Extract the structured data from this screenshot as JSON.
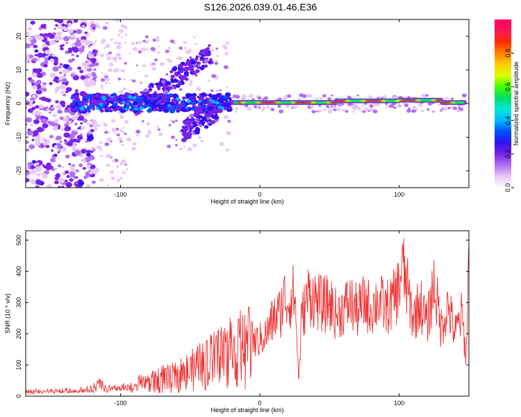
{
  "title": "S126.2026.039.01.46.E36",
  "chart_data": [
    {
      "type": "heatmap",
      "xlabel": "Height of straight line (km)",
      "ylabel": "Frequency (Hz)",
      "xlim": [
        -168,
        150
      ],
      "ylim": [
        -25,
        25
      ],
      "xticks": [
        -100,
        0,
        100
      ],
      "yticks": [
        -20,
        -10,
        0,
        10,
        20
      ],
      "colorbar": {
        "label": "Normalized spectral amplitude",
        "range": [
          0,
          1
        ],
        "ticks": [
          "0.0",
          "0.2",
          "0.4",
          "0.6",
          "0.8"
        ],
        "tick_values": [
          0,
          0.2,
          0.4,
          0.6,
          0.8
        ],
        "colors": [
          "#ffffff",
          "#e8c8f8",
          "#b070f0",
          "#7a22e8",
          "#3010f0",
          "#0050ff",
          "#00b8ff",
          "#00e8d8",
          "#00dd66",
          "#44ff00",
          "#ddff00",
          "#ffcc00",
          "#ff8000",
          "#ff2a00",
          "#ff1555",
          "#ff0066"
        ]
      },
      "dominant_frequency_hz": 0.5,
      "notes_on_features": {
        "noise_region_km": [
          -168,
          -125
        ],
        "rising_streak_km": [
          -90,
          -40
        ],
        "strong_line_km": [
          -20,
          147
        ]
      }
    },
    {
      "type": "line",
      "xlabel": "Height of straight line (km)",
      "ylabel": "SNR (10 * v/v)",
      "xlim": [
        -168,
        150
      ],
      "ylim": [
        0,
        530
      ],
      "xticks": [
        -100,
        0,
        100
      ],
      "yticks": [
        0,
        100,
        200,
        300,
        400,
        500
      ],
      "color": "#ee3333",
      "series": [
        {
          "name": "SNR",
          "x": [
            -168,
            -160,
            -150,
            -140,
            -130,
            -120,
            -115,
            -110,
            -100,
            -90,
            -85,
            -80,
            -70,
            -60,
            -50,
            -40,
            -35,
            -30,
            -20,
            -10,
            -5,
            0,
            5,
            10,
            15,
            17,
            20,
            25,
            28,
            30,
            35,
            40,
            45,
            50,
            55,
            60,
            65,
            70,
            75,
            80,
            85,
            90,
            95,
            100,
            102,
            105,
            110,
            115,
            120,
            125,
            130,
            135,
            140,
            145,
            148,
            150
          ],
          "y": [
            12,
            12,
            13,
            14,
            16,
            18,
            40,
            20,
            22,
            25,
            45,
            40,
            55,
            60,
            80,
            95,
            110,
            120,
            140,
            150,
            170,
            180,
            200,
            250,
            270,
            320,
            300,
            330,
            50,
            250,
            330,
            310,
            290,
            300,
            260,
            280,
            300,
            270,
            300,
            280,
            310,
            280,
            300,
            350,
            420,
            360,
            250,
            300,
            230,
            360,
            220,
            290,
            200,
            260,
            120,
            490
          ]
        }
      ]
    }
  ]
}
